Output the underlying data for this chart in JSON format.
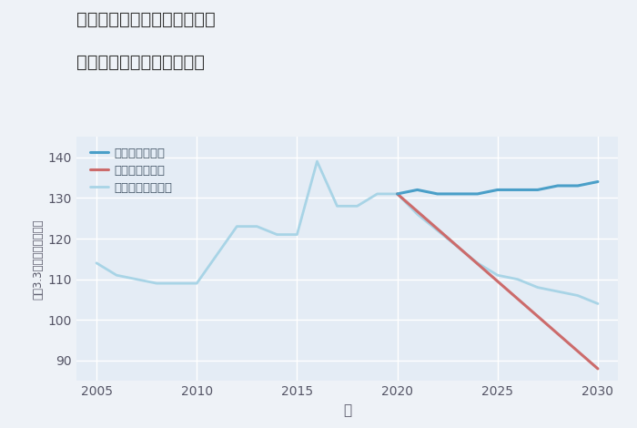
{
  "title_line1": "愛知県名古屋市天白区高島の",
  "title_line2": "中古マンションの価格推移",
  "xlabel": "年",
  "ylabel": "坪（3.3㎡）単価（万円）",
  "ylim": [
    85,
    145
  ],
  "xlim": [
    2004,
    2031
  ],
  "yticks": [
    90,
    100,
    110,
    120,
    130,
    140
  ],
  "xticks": [
    2005,
    2010,
    2015,
    2020,
    2025,
    2030
  ],
  "good_scenario": {
    "label": "グッドシナリオ",
    "color": "#4a9fc8",
    "linewidth": 2.2,
    "x": [
      2020,
      2021,
      2022,
      2023,
      2024,
      2025,
      2026,
      2027,
      2028,
      2029,
      2030
    ],
    "y": [
      131,
      132,
      131,
      131,
      131,
      132,
      132,
      132,
      133,
      133,
      134
    ]
  },
  "bad_scenario": {
    "label": "バッドシナリオ",
    "color": "#cc6b6b",
    "linewidth": 2.2,
    "x": [
      2020,
      2030
    ],
    "y": [
      131,
      88
    ]
  },
  "normal_scenario": {
    "label": "ノーマルシナリオ",
    "color": "#a8d4e6",
    "linewidth": 2.0,
    "x": [
      2005,
      2006,
      2007,
      2008,
      2009,
      2010,
      2011,
      2012,
      2013,
      2014,
      2015,
      2016,
      2017,
      2018,
      2019,
      2020,
      2021,
      2022,
      2023,
      2024,
      2025,
      2026,
      2027,
      2028,
      2029,
      2030
    ],
    "y": [
      114,
      111,
      110,
      109,
      109,
      109,
      116,
      123,
      123,
      121,
      121,
      139,
      128,
      128,
      131,
      131,
      126,
      122,
      118,
      114,
      111,
      110,
      108,
      107,
      106,
      104
    ]
  },
  "background_color": "#eef2f7",
  "plot_bg_color": "#e4ecf5",
  "grid_color": "#ffffff",
  "title_color": "#333333",
  "axis_color": "#555566",
  "legend_label_color": "#445566"
}
